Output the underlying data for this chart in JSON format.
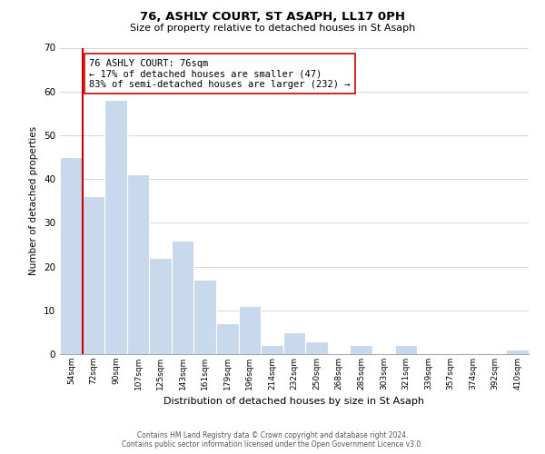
{
  "title": "76, ASHLY COURT, ST ASAPH, LL17 0PH",
  "subtitle": "Size of property relative to detached houses in St Asaph",
  "xlabel": "Distribution of detached houses by size in St Asaph",
  "ylabel": "Number of detached properties",
  "bar_labels": [
    "54sqm",
    "72sqm",
    "90sqm",
    "107sqm",
    "125sqm",
    "143sqm",
    "161sqm",
    "179sqm",
    "196sqm",
    "214sqm",
    "232sqm",
    "250sqm",
    "268sqm",
    "285sqm",
    "303sqm",
    "321sqm",
    "339sqm",
    "357sqm",
    "374sqm",
    "392sqm",
    "410sqm"
  ],
  "bar_values": [
    45,
    36,
    58,
    41,
    22,
    26,
    17,
    7,
    11,
    2,
    5,
    3,
    0,
    2,
    0,
    2,
    0,
    0,
    0,
    0,
    1
  ],
  "bar_color": "#c8d8ed",
  "bar_edge_color": "#ffffff",
  "vline_x": 1,
  "vline_color": "#cc0000",
  "annotation_text": "76 ASHLY COURT: 76sqm\n← 17% of detached houses are smaller (47)\n83% of semi-detached houses are larger (232) →",
  "annotation_box_edgecolor": "#cc0000",
  "annotation_box_facecolor": "#ffffff",
  "ylim": [
    0,
    70
  ],
  "yticks": [
    0,
    10,
    20,
    30,
    40,
    50,
    60,
    70
  ],
  "footer_line1": "Contains HM Land Registry data © Crown copyright and database right 2024.",
  "footer_line2": "Contains public sector information licensed under the Open Government Licence v3.0.",
  "background_color": "#ffffff",
  "grid_color": "#d0d0d0"
}
